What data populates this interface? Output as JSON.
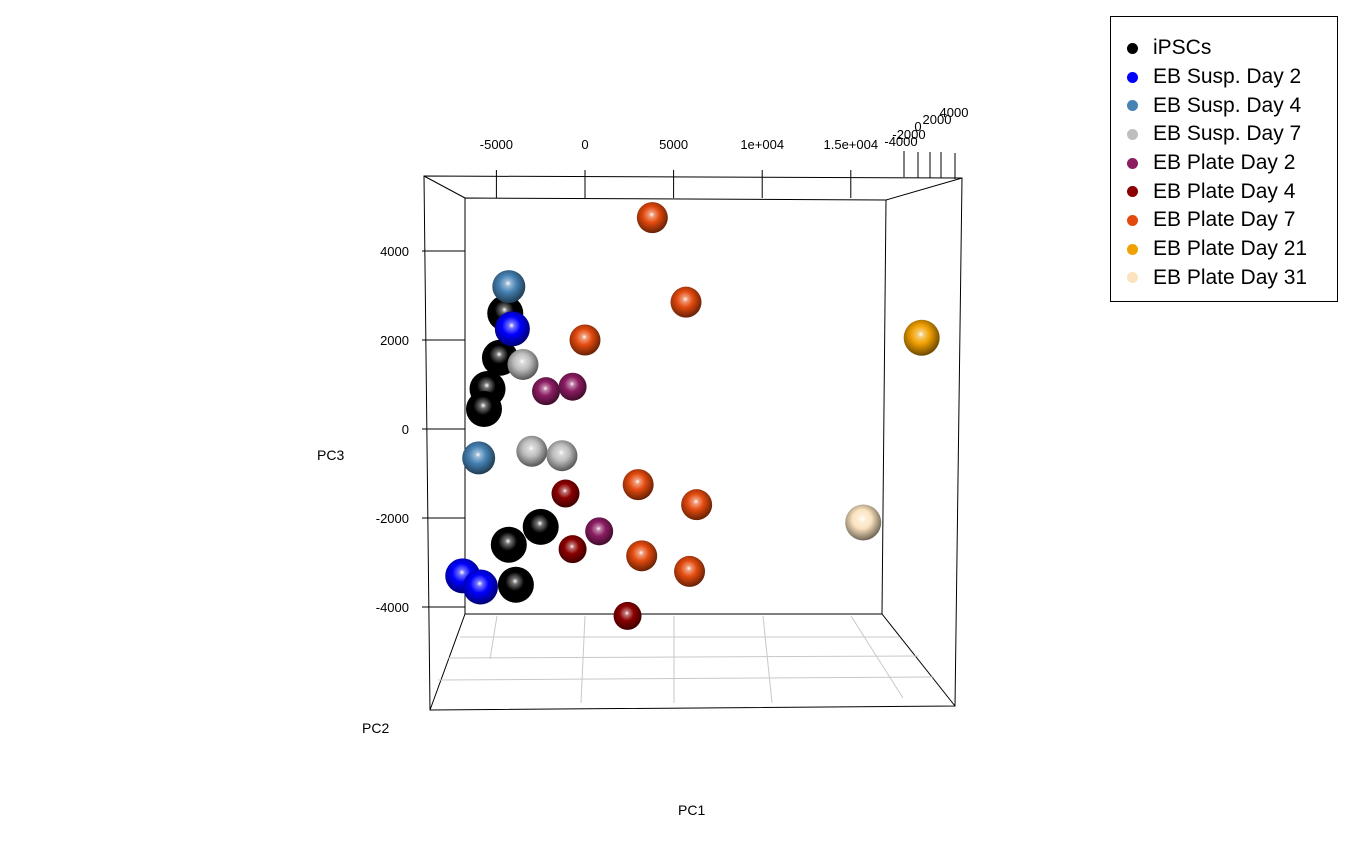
{
  "chart_data": {
    "type": "scatter",
    "title": "",
    "xlabel": "PC1",
    "ylabel": "PC3",
    "zlabel": "PC2",
    "x_ticks": [
      "-5000",
      "0",
      "5000",
      "1e+004",
      "1.5e+004"
    ],
    "x_tick_values": [
      -5000,
      0,
      5000,
      10000,
      15000
    ],
    "y_ticks": [
      "4000",
      "2000",
      "0",
      "-2000",
      "-4000"
    ],
    "y_tick_values": [
      4000,
      2000,
      0,
      -2000,
      -4000
    ],
    "z_ticks": [
      "4000",
      "2000",
      "0",
      "-2000",
      "-4000"
    ],
    "xlim": [
      -9000,
      20000
    ],
    "ylim": [
      -6000,
      6000
    ],
    "legend_position": "top-right",
    "series": [
      {
        "name": "iPSCs",
        "color": "#000000",
        "points": [
          {
            "x": -4500,
            "y": 2600
          },
          {
            "x": -4800,
            "y": 1600
          },
          {
            "x": -5500,
            "y": 900
          },
          {
            "x": -5700,
            "y": 450
          },
          {
            "x": -4300,
            "y": -2600
          },
          {
            "x": -2500,
            "y": -2200
          },
          {
            "x": -3900,
            "y": -3500
          }
        ]
      },
      {
        "name": "EB Susp. Day 2",
        "color": "#0000ff",
        "points": [
          {
            "x": -4100,
            "y": 2250
          },
          {
            "x": -6900,
            "y": -3300
          },
          {
            "x": -5900,
            "y": -3550
          }
        ]
      },
      {
        "name": "EB Susp. Day 4",
        "color": "#4682b4",
        "points": [
          {
            "x": -4300,
            "y": 3200
          },
          {
            "x": -6000,
            "y": -650
          }
        ]
      },
      {
        "name": "EB Susp. Day 7",
        "color": "#bebebe",
        "points": [
          {
            "x": -3500,
            "y": 1450
          },
          {
            "x": -3000,
            "y": -500
          },
          {
            "x": -1300,
            "y": -600
          }
        ]
      },
      {
        "name": "EB Plate Day 2",
        "color": "#8b1c62",
        "points": [
          {
            "x": -2200,
            "y": 850
          },
          {
            "x": -700,
            "y": 950
          },
          {
            "x": 800,
            "y": -2300
          }
        ]
      },
      {
        "name": "EB Plate Day 4",
        "color": "#8b0000",
        "points": [
          {
            "x": -1100,
            "y": -1450
          },
          {
            "x": -700,
            "y": -2700
          },
          {
            "x": 2400,
            "y": -4200
          }
        ]
      },
      {
        "name": "EB Plate Day 7",
        "color": "#e34a0e",
        "points": [
          {
            "x": 3800,
            "y": 4750
          },
          {
            "x": 5700,
            "y": 2850
          },
          {
            "x": 0,
            "y": 2000
          },
          {
            "x": 3000,
            "y": -1250
          },
          {
            "x": 6300,
            "y": -1700
          },
          {
            "x": 3200,
            "y": -2850
          },
          {
            "x": 5900,
            "y": -3200
          }
        ]
      },
      {
        "name": "EB Plate Day 21",
        "color": "#f0a000",
        "points": [
          {
            "x": 19000,
            "y": 2050
          }
        ]
      },
      {
        "name": "EB Plate Day 31",
        "color": "#fbe3c0",
        "points": [
          {
            "x": 15700,
            "y": -2100
          }
        ]
      }
    ]
  }
}
